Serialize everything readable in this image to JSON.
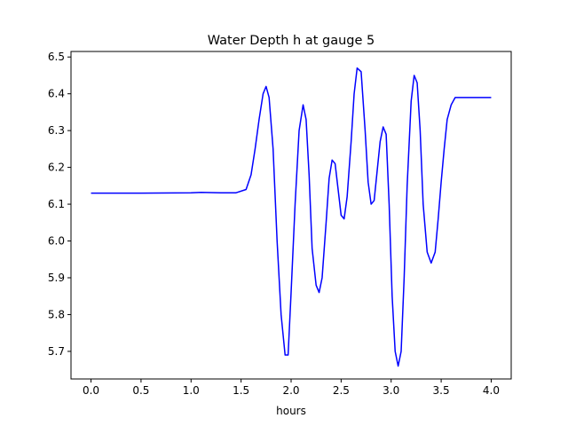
{
  "chart_data": {
    "type": "line",
    "title": "Water Depth h at gauge 5",
    "xlabel": "hours",
    "ylabel": "",
    "xlim": [
      -0.2,
      4.2
    ],
    "ylim": [
      5.625,
      6.515
    ],
    "grid": false,
    "x_ticks": [
      0.0,
      0.5,
      1.0,
      1.5,
      2.0,
      2.5,
      3.0,
      3.5,
      4.0
    ],
    "x_tick_labels": [
      "0.0",
      "0.5",
      "1.0",
      "1.5",
      "2.0",
      "2.5",
      "3.0",
      "3.5",
      "4.0"
    ],
    "y_ticks": [
      5.7,
      5.8,
      5.9,
      6.0,
      6.1,
      6.2,
      6.3,
      6.4,
      6.5
    ],
    "y_tick_labels": [
      "5.7",
      "5.8",
      "5.9",
      "6.0",
      "6.1",
      "6.2",
      "6.3",
      "6.4",
      "6.5"
    ],
    "series": [
      {
        "color": "#0000ff",
        "x": [
          0.0,
          0.5,
          1.0,
          1.1,
          1.3,
          1.45,
          1.55,
          1.6,
          1.64,
          1.68,
          1.72,
          1.75,
          1.78,
          1.82,
          1.86,
          1.9,
          1.94,
          1.97,
          2.0,
          2.04,
          2.08,
          2.12,
          2.15,
          2.18,
          2.21,
          2.25,
          2.28,
          2.31,
          2.35,
          2.38,
          2.41,
          2.44,
          2.47,
          2.5,
          2.53,
          2.56,
          2.6,
          2.63,
          2.66,
          2.7,
          2.74,
          2.77,
          2.8,
          2.83,
          2.86,
          2.89,
          2.92,
          2.95,
          2.98,
          3.01,
          3.04,
          3.07,
          3.1,
          3.13,
          3.16,
          3.2,
          3.23,
          3.26,
          3.29,
          3.32,
          3.36,
          3.4,
          3.44,
          3.47,
          3.5,
          3.53,
          3.56,
          3.6,
          3.64,
          3.67,
          3.7,
          3.74,
          3.78,
          3.82,
          3.86,
          3.9,
          3.94,
          3.97,
          4.0
        ],
        "y": [
          6.13,
          6.13,
          6.131,
          6.132,
          6.131,
          6.131,
          6.14,
          6.18,
          6.25,
          6.33,
          6.4,
          6.42,
          6.39,
          6.25,
          6.0,
          5.8,
          5.69,
          5.69,
          5.86,
          6.1,
          6.3,
          6.37,
          6.33,
          6.18,
          5.98,
          5.88,
          5.86,
          5.9,
          6.05,
          6.17,
          6.22,
          6.21,
          6.14,
          6.07,
          6.06,
          6.12,
          6.27,
          6.4,
          6.47,
          6.46,
          6.3,
          6.16,
          6.1,
          6.11,
          6.19,
          6.27,
          6.31,
          6.29,
          6.1,
          5.85,
          5.7,
          5.66,
          5.7,
          5.9,
          6.15,
          6.38,
          6.45,
          6.43,
          6.3,
          6.1,
          5.97,
          5.94,
          5.97,
          6.06,
          6.16,
          6.25,
          6.33,
          6.37,
          6.39,
          6.39,
          6.39,
          6.39,
          6.39,
          6.39,
          6.39,
          6.39,
          6.39,
          6.39,
          6.39
        ]
      }
    ]
  }
}
